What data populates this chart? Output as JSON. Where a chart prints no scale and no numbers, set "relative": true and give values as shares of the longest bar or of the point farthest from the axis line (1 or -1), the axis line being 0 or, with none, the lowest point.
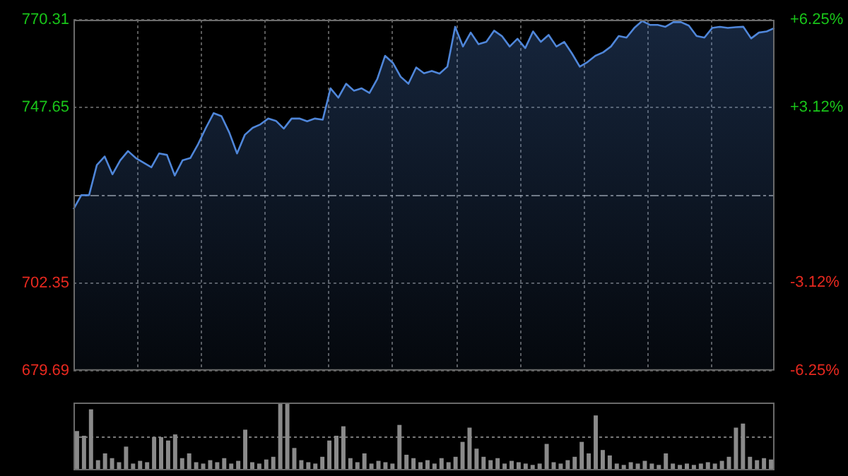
{
  "chart_data": [
    {
      "type": "area",
      "categories": [
        null,
        null,
        null,
        null,
        null,
        null,
        null,
        null,
        null,
        null,
        null,
        null,
        null,
        null,
        null,
        null,
        null,
        null,
        null,
        null,
        null,
        null,
        null,
        null,
        null,
        null,
        null,
        null,
        null,
        null,
        null,
        null,
        null,
        null,
        null,
        null,
        null,
        null,
        null,
        null,
        null,
        null,
        null,
        null,
        null,
        null,
        null,
        null,
        null,
        null,
        null,
        null,
        null,
        null,
        null,
        null,
        null,
        null,
        null,
        null,
        null,
        null,
        null,
        null,
        null,
        null,
        null,
        null,
        null,
        null,
        null,
        null,
        null,
        null,
        null,
        null,
        null,
        null,
        null,
        null,
        null,
        null,
        null,
        null,
        null,
        null,
        null,
        null,
        null,
        null,
        null
      ],
      "series": [
        {
          "color": "#4f86d9",
          "values": [
            721.4,
            725.0,
            725.0,
            732.8,
            735.0,
            730.4,
            734.0,
            736.4,
            734.6,
            733.4,
            732.2,
            735.8,
            735.4,
            730.1,
            734.0,
            734.6,
            738.2,
            742.4,
            746.2,
            745.4,
            741.2,
            735.8,
            740.6,
            742.4,
            743.3,
            744.8,
            744.2,
            742.2,
            744.8,
            744.8,
            744.1,
            744.8,
            744.5,
            752.6,
            750.2,
            753.8,
            752.0,
            752.6,
            751.4,
            755.0,
            761.0,
            759.2,
            755.6,
            753.8,
            758.0,
            756.5,
            757.1,
            756.4,
            758.2,
            768.5,
            763.4,
            767.0,
            764.0,
            764.6,
            767.5,
            766.1,
            763.4,
            765.4,
            763.0,
            767.3,
            764.6,
            766.4,
            763.4,
            764.6,
            761.6,
            758.2,
            759.4,
            761.0,
            761.9,
            763.4,
            766.1,
            765.7,
            768.2,
            770.0,
            769.0,
            769.0,
            768.5,
            769.7,
            769.7,
            768.8,
            766.1,
            765.7,
            768.2,
            768.5,
            768.2,
            768.4,
            768.5,
            765.5,
            767.0,
            767.3,
            768.2
          ]
        }
      ],
      "ylim": [
        679.69,
        770.31
      ],
      "yticks": [
        679.69,
        702.35,
        747.65,
        770.31
      ],
      "y2lim": [
        -6.25,
        6.25
      ],
      "y2ticks": [
        {
          "value": -6.25,
          "label": "-6.25%"
        },
        {
          "value": -3.12,
          "label": "-3.12%"
        },
        {
          "value": 3.12,
          "label": "+3.12%"
        },
        {
          "value": 6.25,
          "label": "+6.25%"
        }
      ],
      "ref_lines": [
        {
          "axis": "y",
          "value": 725.0,
          "line_style": "dashed"
        }
      ],
      "grid": true,
      "tick_labels": "y"
    },
    {
      "type": "bar",
      "categories": [
        null,
        null,
        null,
        null,
        null,
        null,
        null,
        null,
        null,
        null,
        null,
        null,
        null,
        null,
        null,
        null,
        null,
        null,
        null,
        null,
        null,
        null,
        null,
        null,
        null,
        null,
        null,
        null,
        null,
        null,
        null,
        null,
        null,
        null,
        null,
        null,
        null,
        null,
        null,
        null,
        null,
        null,
        null,
        null,
        null,
        null,
        null,
        null,
        null,
        null,
        null,
        null,
        null,
        null,
        null,
        null,
        null,
        null,
        null,
        null,
        null,
        null,
        null,
        null,
        null,
        null,
        null,
        null,
        null,
        null,
        null,
        null,
        null,
        null,
        null,
        null,
        null,
        null,
        null,
        null,
        null,
        null,
        null,
        null,
        null,
        null,
        null,
        null,
        null,
        null,
        null,
        null,
        null,
        null,
        null,
        null,
        null,
        null,
        null,
        null
      ],
      "relative": true,
      "color": "#8a8a8a",
      "values": [
        0.58,
        0.51,
        0.9,
        0.15,
        0.25,
        0.18,
        0.12,
        0.35,
        0.1,
        0.14,
        0.12,
        0.49,
        0.49,
        0.44,
        0.53,
        0.18,
        0.25,
        0.12,
        0.1,
        0.15,
        0.12,
        0.18,
        0.1,
        0.14,
        0.6,
        0.12,
        0.1,
        0.16,
        0.2,
        0.98,
        1,
        0.33,
        0.15,
        0.12,
        0.1,
        0.2,
        0.44,
        0.51,
        0.65,
        0.18,
        0.12,
        0.25,
        0.1,
        0.14,
        0.12,
        0.1,
        0.67,
        0.23,
        0.18,
        0.12,
        0.15,
        0.1,
        0.18,
        0.12,
        0.2,
        0.42,
        0.63,
        0.32,
        0.2,
        0.15,
        0.18,
        0.1,
        0.14,
        0.12,
        0.1,
        0.08,
        0.1,
        0.39,
        0.12,
        0.1,
        0.15,
        0.2,
        0.42,
        0.25,
        0.81,
        0.3,
        0.22,
        0.1,
        0.08,
        0.12,
        0.1,
        0.14,
        0.1,
        0.08,
        0.25,
        0.1,
        0.08,
        0.1,
        0.08,
        0.1,
        0.12,
        0.1,
        0.14,
        0.2,
        0.63,
        0.69,
        0.2,
        0.15,
        0.18,
        0.16
      ],
      "ref_lines": [
        {
          "axis": "y",
          "value": 0.5,
          "line_style": "dotted"
        }
      ]
    }
  ]
}
